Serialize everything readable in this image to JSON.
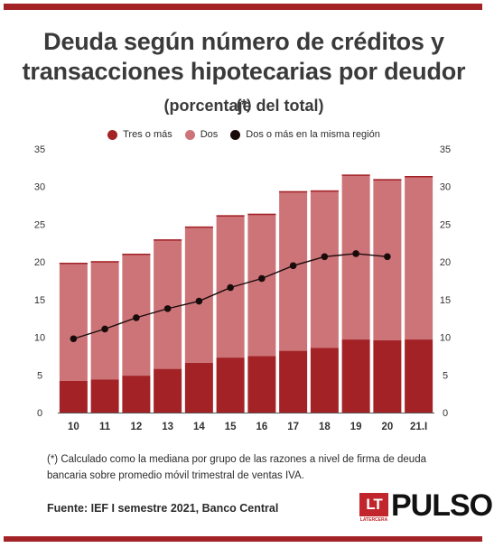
{
  "title": "Deuda según número de créditos y transacciones hipotecarias por deudor",
  "title_suffix": "(*)",
  "subtitle": "(porcentaje del total)",
  "note": "(*) Calculado como la mediana por grupo de las razones a nivel de firma de deuda bancaria sobre promedio móvil trimestral de ventas IVA.",
  "source": "Fuente: IEF I semestre 2021, Banco Central",
  "logo": {
    "mark": "LT",
    "mark_sub": "LATERCERA",
    "name": "PULSO"
  },
  "colors": {
    "tres_o_mas": "#a32226",
    "dos": "#cd7479",
    "line": "#1a0b0b",
    "bar_top": "#a32226"
  },
  "chart_data": {
    "type": "bar",
    "stacked": true,
    "categories": [
      "10",
      "11",
      "12",
      "13",
      "14",
      "15",
      "16",
      "17",
      "18",
      "19",
      "20",
      "21.I"
    ],
    "series": [
      {
        "name": "Tres o más",
        "type": "bar",
        "values": [
          4.2,
          4.4,
          4.9,
          5.8,
          6.6,
          7.3,
          7.5,
          8.2,
          8.6,
          9.7,
          9.6,
          9.7
        ]
      },
      {
        "name": "Dos",
        "type": "bar",
        "values": [
          15.7,
          15.7,
          16.2,
          17.2,
          18.1,
          18.9,
          18.9,
          21.2,
          20.9,
          21.9,
          21.4,
          21.7
        ]
      },
      {
        "name": "Dos o más en la misma región",
        "type": "line",
        "values": [
          9.8,
          11.1,
          12.6,
          13.8,
          14.8,
          16.6,
          17.8,
          19.5,
          20.7,
          21.1,
          20.7,
          null
        ]
      }
    ],
    "ylim": [
      0,
      35
    ],
    "yticks": [
      0,
      5,
      10,
      15,
      20,
      25,
      30,
      35
    ],
    "grid": false,
    "legend": "top-center",
    "axes": "left-and-right"
  }
}
